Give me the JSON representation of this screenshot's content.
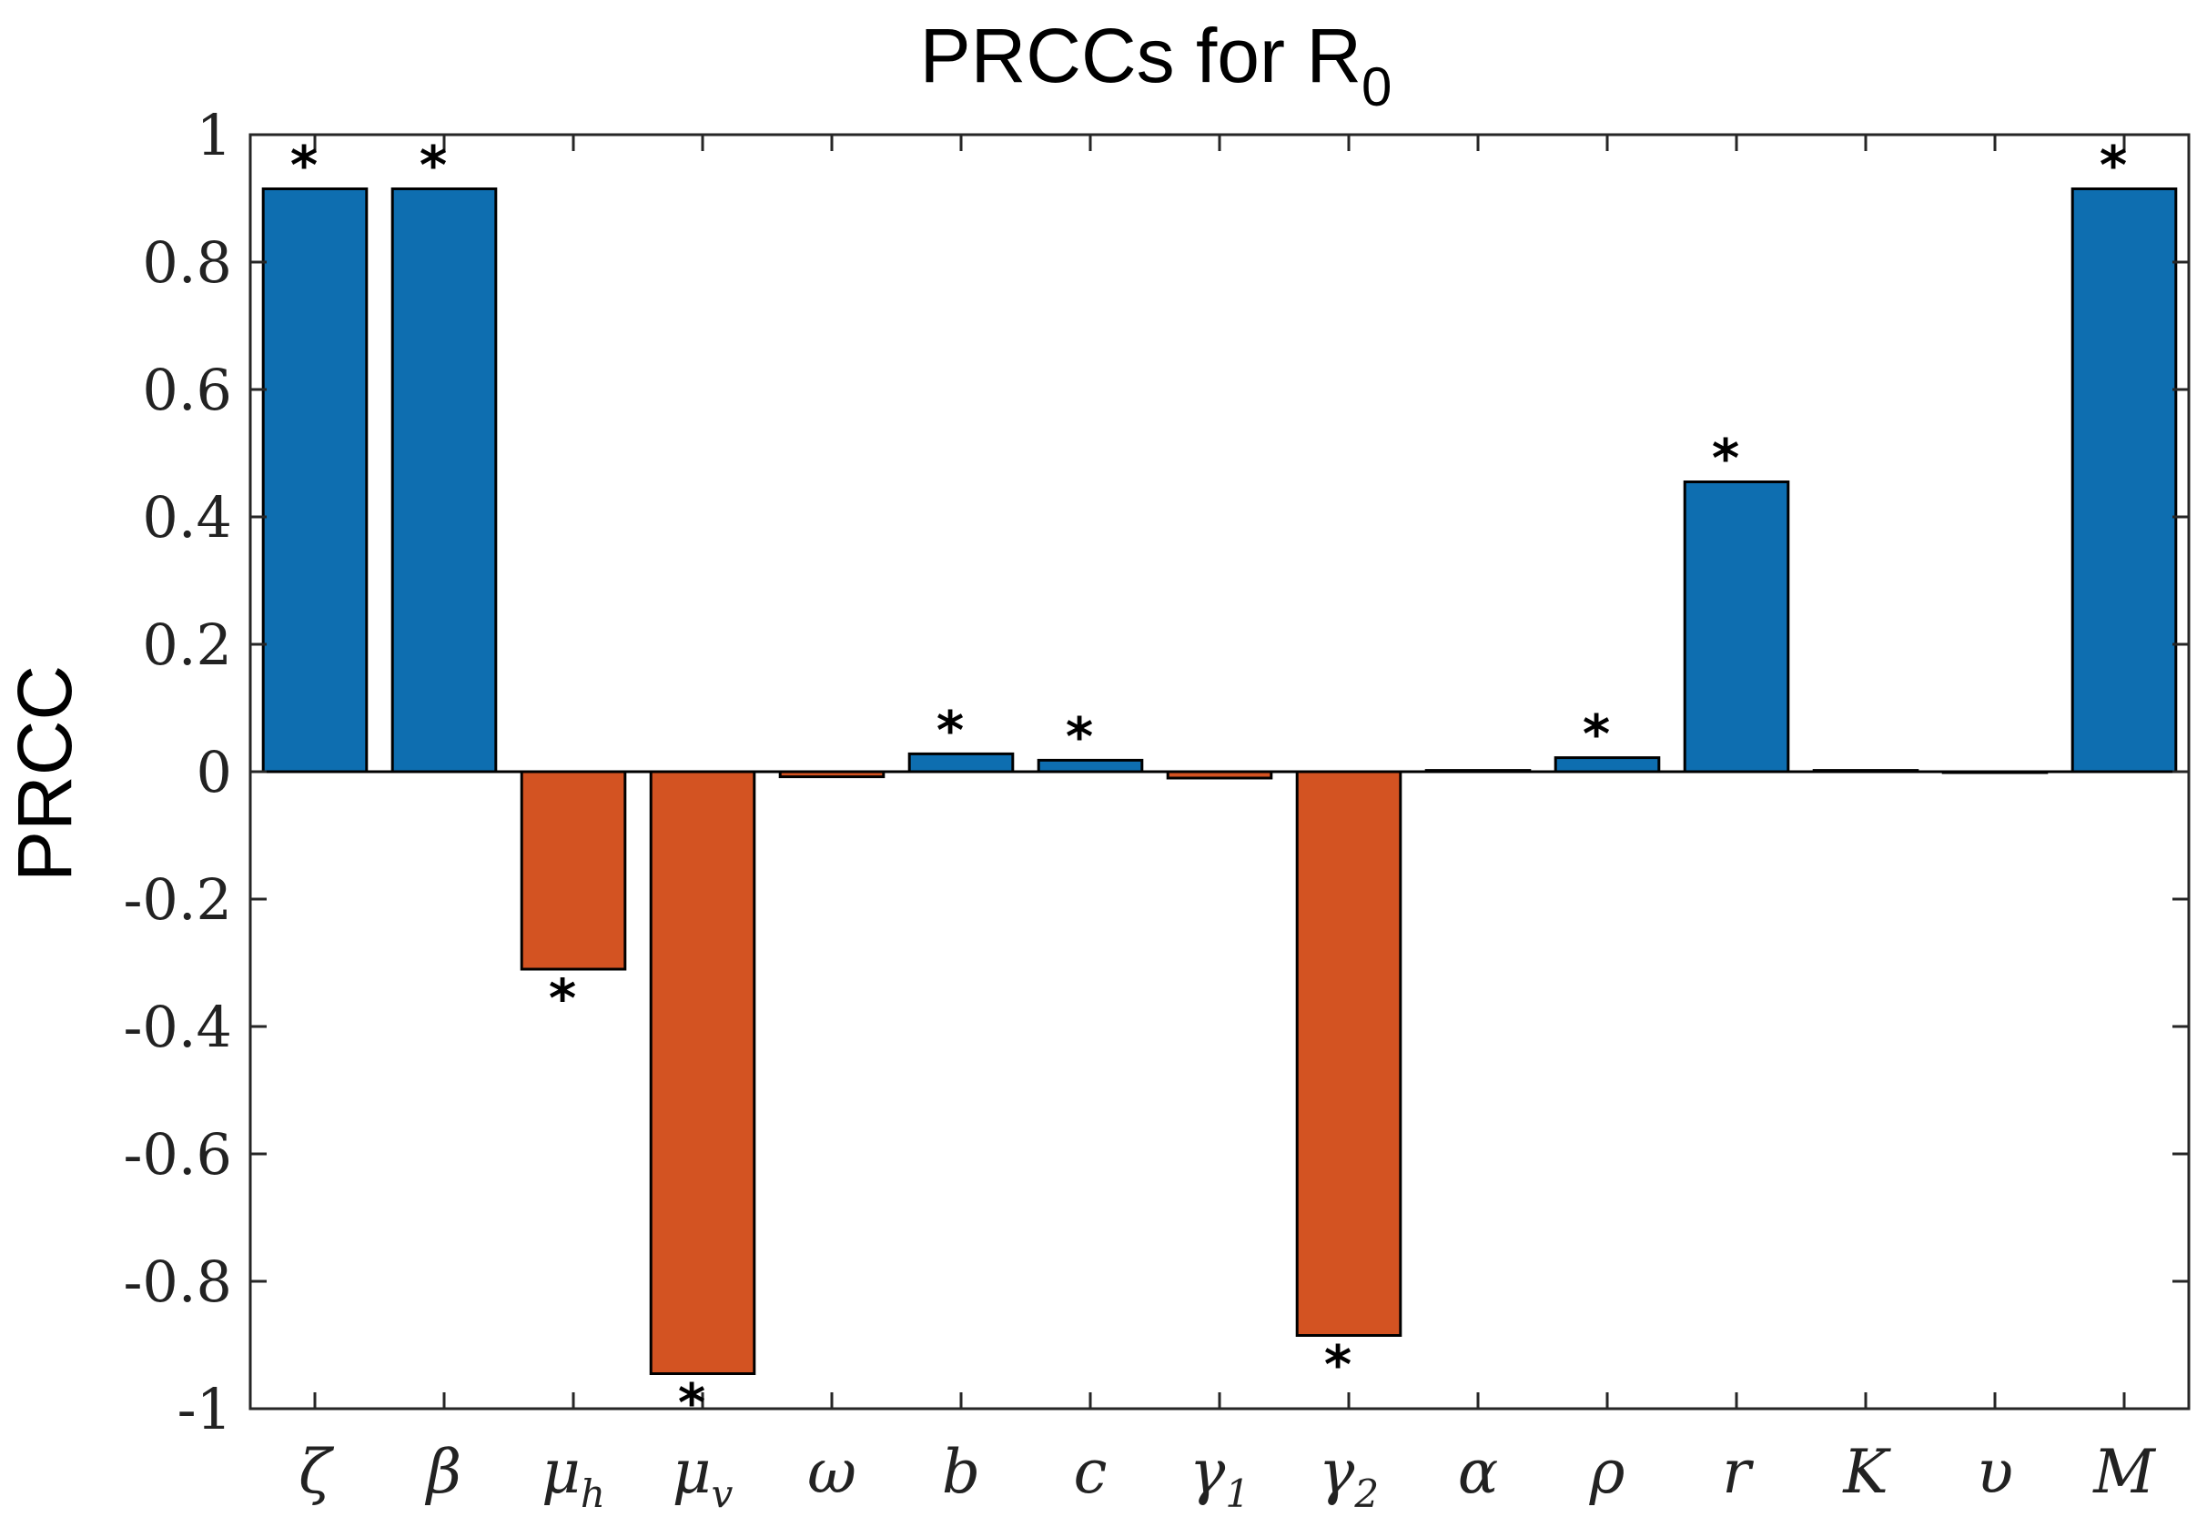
{
  "chart_data": {
    "type": "bar",
    "title": "PRCCs for R",
    "title_subscript": "0",
    "xlabel": "",
    "ylabel": "PRCC",
    "ylim": [
      -1,
      1
    ],
    "yticks": [
      1,
      0.8,
      0.6,
      0.4,
      0.2,
      0,
      -0.2,
      -0.4,
      -0.6,
      -0.8,
      -1
    ],
    "ytick_labels": [
      "1",
      "0.8",
      "0.6",
      "0.4",
      "0.2",
      "0",
      "-0.2",
      "-0.4",
      "-0.6",
      "-0.8",
      "-1"
    ],
    "categories": [
      {
        "label": "ζ",
        "sub": ""
      },
      {
        "label": "β",
        "sub": ""
      },
      {
        "label": "μ",
        "sub": "h"
      },
      {
        "label": "μ",
        "sub": "v"
      },
      {
        "label": "ω",
        "sub": ""
      },
      {
        "label": "b",
        "sub": ""
      },
      {
        "label": "c",
        "sub": ""
      },
      {
        "label": "γ",
        "sub": "1"
      },
      {
        "label": "γ",
        "sub": "2"
      },
      {
        "label": "α",
        "sub": ""
      },
      {
        "label": "ρ",
        "sub": ""
      },
      {
        "label": "r",
        "sub": ""
      },
      {
        "label": "K",
        "sub": ""
      },
      {
        "label": "υ",
        "sub": ""
      },
      {
        "label": "M",
        "sub": ""
      }
    ],
    "values": [
      0.915,
      0.915,
      -0.31,
      -0.945,
      -0.008,
      0.028,
      0.018,
      -0.01,
      -0.885,
      0.002,
      0.022,
      0.455,
      0.002,
      0.0,
      0.915
    ],
    "significant": [
      true,
      true,
      true,
      true,
      false,
      true,
      true,
      false,
      true,
      false,
      true,
      true,
      false,
      false,
      true
    ],
    "significance_marker": "*",
    "colors": {
      "positive": "#0E6EB0",
      "negative": "#D35322",
      "edge": "#000000",
      "axis": "#262626"
    }
  }
}
